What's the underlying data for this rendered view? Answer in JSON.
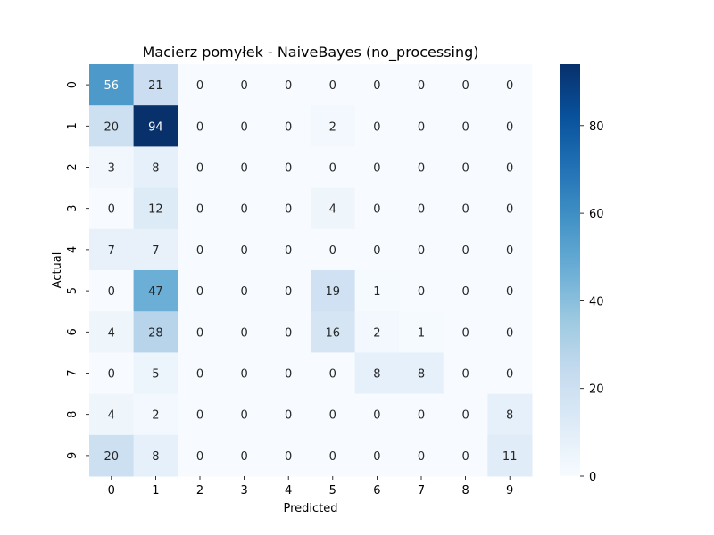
{
  "chart_data": {
    "type": "heatmap",
    "title": "Macierz pomyłek - NaiveBayes (no_processing)",
    "xlabel": "Predicted",
    "ylabel": "Actual",
    "x_categories": [
      "0",
      "1",
      "2",
      "3",
      "4",
      "5",
      "6",
      "7",
      "8",
      "9"
    ],
    "y_categories": [
      "0",
      "1",
      "2",
      "3",
      "4",
      "5",
      "6",
      "7",
      "8",
      "9"
    ],
    "matrix": [
      [
        56,
        21,
        0,
        0,
        0,
        0,
        0,
        0,
        0,
        0
      ],
      [
        20,
        94,
        0,
        0,
        0,
        2,
        0,
        0,
        0,
        0
      ],
      [
        3,
        8,
        0,
        0,
        0,
        0,
        0,
        0,
        0,
        0
      ],
      [
        0,
        12,
        0,
        0,
        0,
        4,
        0,
        0,
        0,
        0
      ],
      [
        7,
        7,
        0,
        0,
        0,
        0,
        0,
        0,
        0,
        0
      ],
      [
        0,
        47,
        0,
        0,
        0,
        19,
        1,
        0,
        0,
        0
      ],
      [
        4,
        28,
        0,
        0,
        0,
        16,
        2,
        1,
        0,
        0
      ],
      [
        0,
        5,
        0,
        0,
        0,
        0,
        8,
        8,
        0,
        0
      ],
      [
        4,
        2,
        0,
        0,
        0,
        0,
        0,
        0,
        0,
        8
      ],
      [
        20,
        8,
        0,
        0,
        0,
        0,
        0,
        0,
        0,
        11
      ]
    ],
    "colorscale": "Blues",
    "value_range": [
      0,
      94
    ],
    "colorbar_ticks": [
      "0",
      "20",
      "40",
      "60",
      "80"
    ],
    "colorbar_tick_values": [
      0,
      20,
      40,
      60,
      80
    ]
  }
}
